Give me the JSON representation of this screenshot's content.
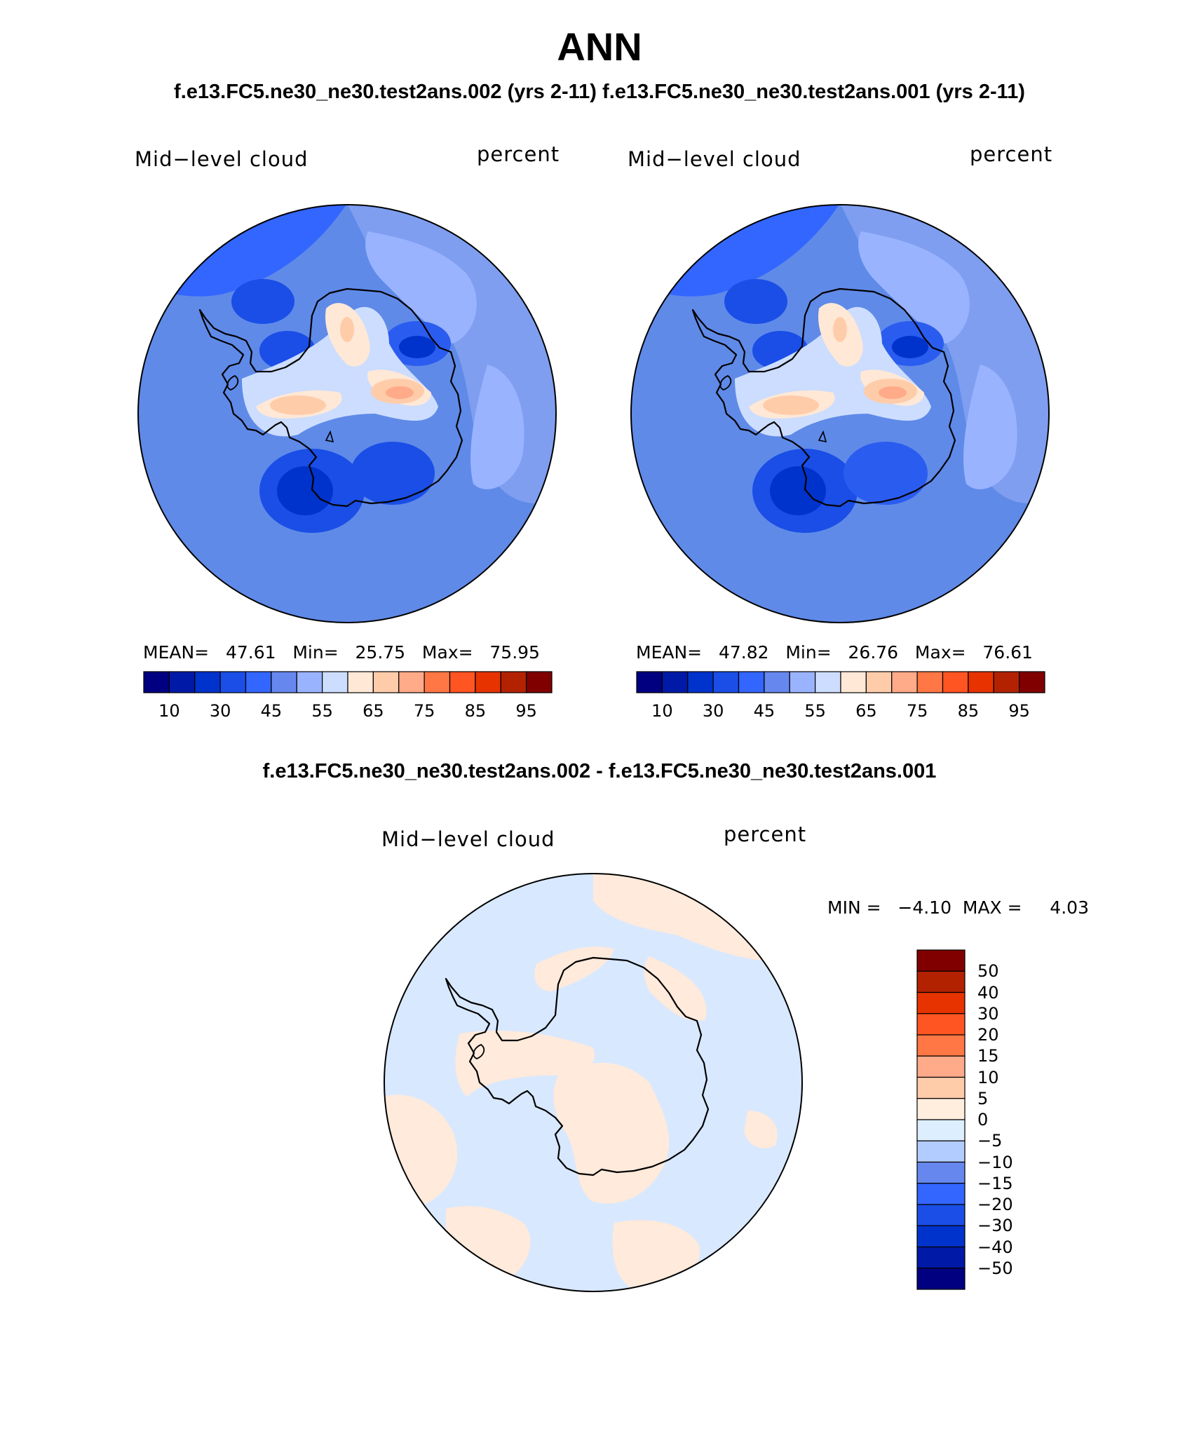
{
  "title": "ANN",
  "top_subtitle_left": "f.e13.FC5.ne30_ne30.test2ans.002 (yrs 2-11)",
  "top_subtitle_right": "f.e13.FC5.ne30_ne30.test2ans.001 (yrs 2-11)",
  "bottom_subtitle": "f.e13.FC5.ne30_ne30.test2ans.002 - f.e13.FC5.ne30_ne30.test2ans.001",
  "panels": [
    {
      "label": "Mid−level cloud",
      "units": "percent",
      "stats": "MEAN=   47.61   Min=   25.75   Max=   75.95"
    },
    {
      "label": "Mid−level cloud",
      "units": "percent",
      "stats": "MEAN=   47.82   Min=   26.76   Max=   76.61"
    },
    {
      "label": "Mid−level cloud",
      "units": "percent",
      "stats": "MIN =   −4.10  MAX =     4.03"
    }
  ],
  "abs_colorbar": {
    "colors": [
      "#000080",
      "#0019a6",
      "#0033cc",
      "#1a4ee6",
      "#3366ff",
      "#6688ee",
      "#99b3ff",
      "#ccddff",
      "#ffe8d6",
      "#ffccaa",
      "#ffaa88",
      "#ff7744",
      "#ff5522",
      "#e63300",
      "#b32200",
      "#800000"
    ],
    "tick_labels": [
      "10",
      "30",
      "45",
      "55",
      "65",
      "75",
      "85",
      "95"
    ]
  },
  "diff_colorbar": {
    "colors": [
      "#000080",
      "#0019a6",
      "#0033cc",
      "#1a4ee6",
      "#3366ff",
      "#6688ee",
      "#b3ccff",
      "#ddeeff",
      "#ffeedd",
      "#ffccaa",
      "#ffaa88",
      "#ff7744",
      "#ff5522",
      "#e63300",
      "#b32200",
      "#800000"
    ],
    "tick_labels": [
      "50",
      "40",
      "30",
      "20",
      "15",
      "10",
      "5",
      "0",
      "−5",
      "−10",
      "−15",
      "−20",
      "−30",
      "−40",
      "−50"
    ]
  },
  "map_colors": {
    "ocean_base": "#5f8ae8",
    "deep_blue": "#1a4ee6",
    "mid_blue": "#3366ff",
    "light_blue": "#99b3ff",
    "pale_blue": "#ccddff",
    "peach": "#ffccaa",
    "salmon": "#ffaa88",
    "diff_blue": "#d8e8ff",
    "diff_peach": "#ffeadb"
  }
}
